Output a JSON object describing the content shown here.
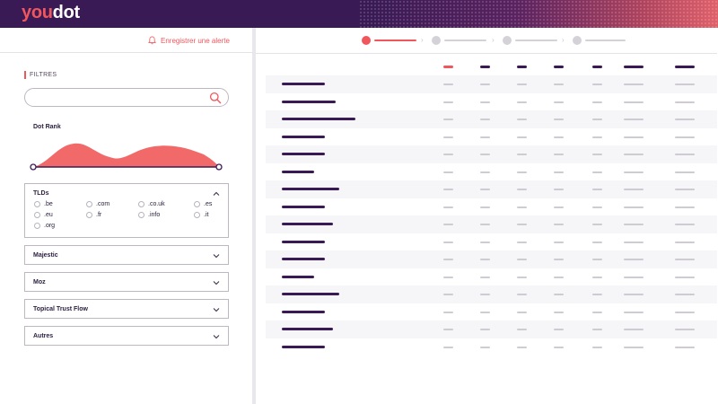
{
  "brand": {
    "logo_part1": "you",
    "logo_part2": "dot"
  },
  "alert": {
    "label": "Enregistrer une alerte",
    "icon": "bell-icon"
  },
  "filters": {
    "heading": "FILTRES",
    "search": {
      "value": "",
      "placeholder": "",
      "icon": "search-icon"
    },
    "dot_rank": {
      "label": "Dot Rank"
    },
    "tlds": {
      "title": "TLDs",
      "expanded": true,
      "options": [
        ".be",
        ".com",
        ".co.uk",
        ".es",
        ".eu",
        ".fr",
        ".info",
        ".it",
        ".org"
      ]
    },
    "sections": [
      {
        "title": "Majestic",
        "expanded": false
      },
      {
        "title": "Moz",
        "expanded": false
      },
      {
        "title": "Topical Trust Flow",
        "expanded": false
      },
      {
        "title": "Autres",
        "expanded": false
      }
    ]
  },
  "steps": [
    {
      "state": "active"
    },
    {
      "state": "inactive"
    },
    {
      "state": "inactive"
    },
    {
      "state": "inactive"
    }
  ],
  "table": {
    "columns": 7,
    "rows": 16
  },
  "colors": {
    "brand_dark": "#3a1a55",
    "accent": "#f0575d",
    "placeholder_gray": "#cfcbd3"
  }
}
